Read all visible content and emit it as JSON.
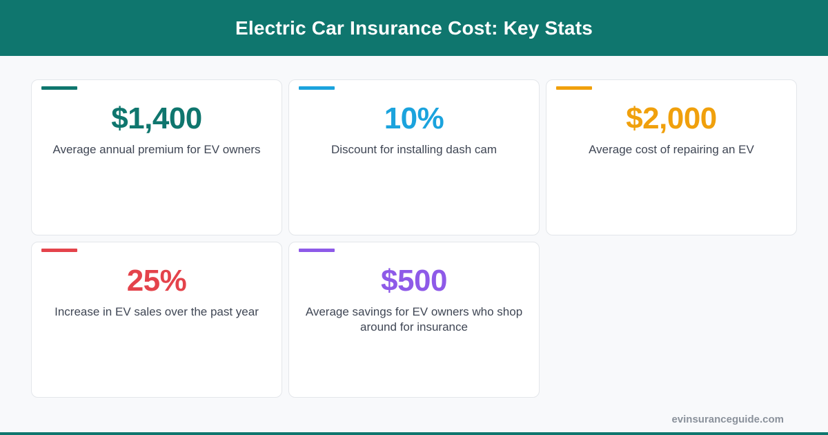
{
  "header": {
    "title": "Electric Car Insurance Cost: Key Stats"
  },
  "stats": [
    {
      "value": "$1,400",
      "label": "Average annual premium for EV owners",
      "color": "#0f766e"
    },
    {
      "value": "10%",
      "label": "Discount for installing dash cam",
      "color": "#1ba3dd"
    },
    {
      "value": "$2,000",
      "label": "Average cost of repairing an EV",
      "color": "#f0a00c"
    },
    {
      "value": "25%",
      "label": "Increase in EV sales over the past year",
      "color": "#e4434b"
    },
    {
      "value": "$500",
      "label": "Average savings for EV owners who shop around for insurance",
      "color": "#8e5ae8"
    }
  ],
  "footer": {
    "site": "evinsuranceguide.com"
  },
  "colors": {
    "brand": "#0f766e",
    "background": "#f8f9fb",
    "text": "#3f4654"
  }
}
